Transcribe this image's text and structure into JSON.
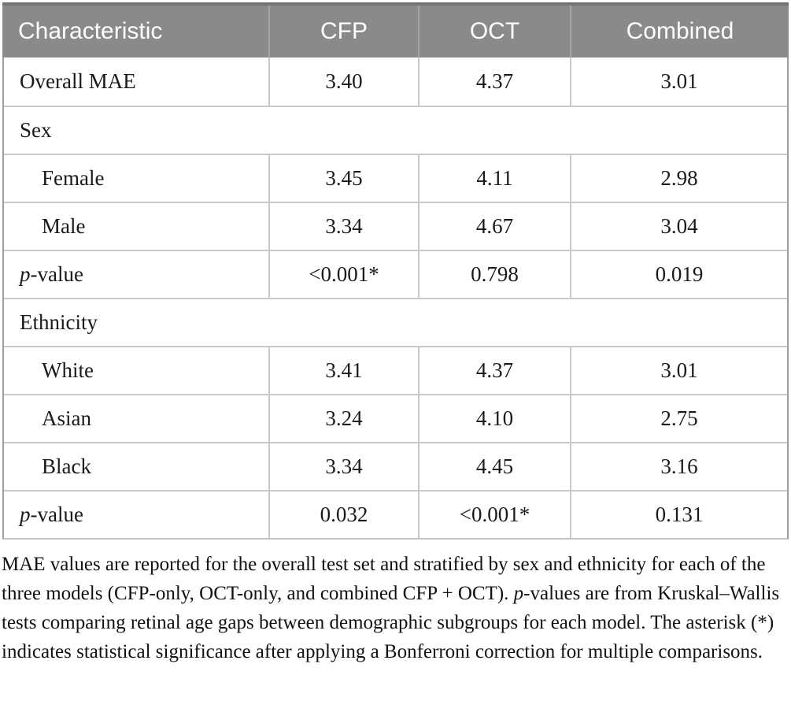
{
  "table": {
    "columns": [
      "Characteristic",
      "CFP",
      "OCT",
      "Combined"
    ],
    "rows": [
      {
        "label": "Overall MAE",
        "values": [
          "3.40",
          "4.37",
          "3.01"
        ]
      },
      {
        "label": "Sex"
      },
      {
        "label": "Female",
        "values": [
          "3.45",
          "4.11",
          "2.98"
        ]
      },
      {
        "label": "Male",
        "values": [
          "3.34",
          "4.67",
          "3.04"
        ]
      },
      {
        "label_italic": "p",
        "label_rest": "-value",
        "values": [
          "<0.001*",
          "0.798",
          "0.019"
        ]
      },
      {
        "label": "Ethnicity"
      },
      {
        "label": "White",
        "values": [
          "3.41",
          "4.37",
          "3.01"
        ]
      },
      {
        "label": "Asian",
        "values": [
          "3.24",
          "4.10",
          "2.75"
        ]
      },
      {
        "label": "Black",
        "values": [
          "3.34",
          "4.45",
          "3.16"
        ]
      },
      {
        "label_italic": "p",
        "label_rest": "-value",
        "values": [
          "0.032",
          "<0.001*",
          "0.131"
        ]
      }
    ]
  },
  "footnote": {
    "part1": "MAE values are reported for the overall test set and stratified by sex and ethnicity for each of the three models (CFP-only, OCT-only, and combined CFP + OCT). ",
    "italic_p": "p",
    "part2": "-values are from Kruskal–Wallis tests comparing retinal age gaps between demographic subgroups for each model. The asterisk (*) indicates statistical significance after applying a Bonferroni correction for multiple comparisons."
  },
  "colors": {
    "header_bg": "#8a8a8a",
    "header_top_edge": "#747474",
    "header_text": "#ffffff",
    "cell_border": "#c9c9c9",
    "outer_border": "#9e9e9e",
    "body_text": "#1a1a1a"
  }
}
